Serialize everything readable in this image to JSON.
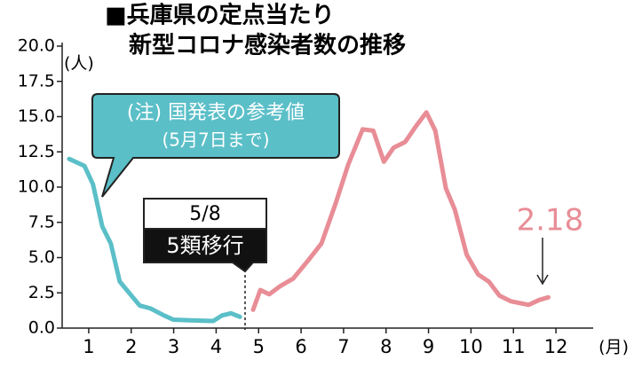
{
  "chart_data": {
    "type": "line",
    "title": [
      "■兵庫県の定点当たり",
      "新型コロナ感染者数の推移"
    ],
    "y_unit": "(人)",
    "x_unit": "(月)",
    "xlim": [
      0.5,
      12.5
    ],
    "xticks": [
      1,
      2,
      3,
      4,
      5,
      6,
      7,
      8,
      9,
      10,
      11,
      12
    ],
    "ylim": [
      0,
      20
    ],
    "yticks": [
      {
        "value": 0,
        "label": "0.0"
      },
      2.5,
      {
        "value": 5,
        "label": "5.0"
      },
      7.5,
      {
        "value": 10,
        "label": "10.0"
      },
      12.5,
      {
        "value": 15,
        "label": "15.0"
      },
      17.5,
      {
        "value": 20,
        "label": "20.0"
      }
    ],
    "series": [
      {
        "color": "#5bbfc8",
        "x": [
          0.54,
          0.9,
          1.1,
          1.32,
          1.52,
          1.73,
          2.2,
          2.45,
          2.77,
          2.99,
          3.4,
          3.93,
          4.14,
          4.35,
          4.56
        ],
        "values": [
          12.0,
          11.5,
          10.2,
          7.2,
          6.0,
          3.3,
          1.6,
          1.4,
          0.9,
          0.6,
          0.55,
          0.5,
          0.9,
          1.05,
          0.8
        ]
      },
      {
        "color": "#e88d96",
        "x": [
          4.87,
          5.04,
          5.25,
          5.52,
          5.81,
          6.14,
          6.48,
          6.82,
          7.11,
          7.45,
          7.7,
          7.95,
          8.18,
          8.45,
          8.7,
          8.95,
          9.16,
          9.41,
          9.62,
          9.9,
          10.17,
          10.42,
          10.67,
          10.94,
          11.36,
          11.61,
          11.82
        ],
        "values": [
          1.3,
          2.7,
          2.4,
          3.0,
          3.5,
          4.7,
          6.0,
          8.9,
          11.6,
          14.1,
          14.0,
          11.8,
          12.8,
          13.2,
          14.3,
          15.3,
          14.0,
          9.9,
          8.4,
          5.2,
          3.8,
          3.3,
          2.3,
          1.9,
          1.65,
          2.0,
          2.18
        ]
      }
    ],
    "annotations": {
      "note": "(注) 国発表の参考値",
      "note_sub": "(5月7日まで)",
      "date": "5/8",
      "event": "5類移行"
    }
  }
}
